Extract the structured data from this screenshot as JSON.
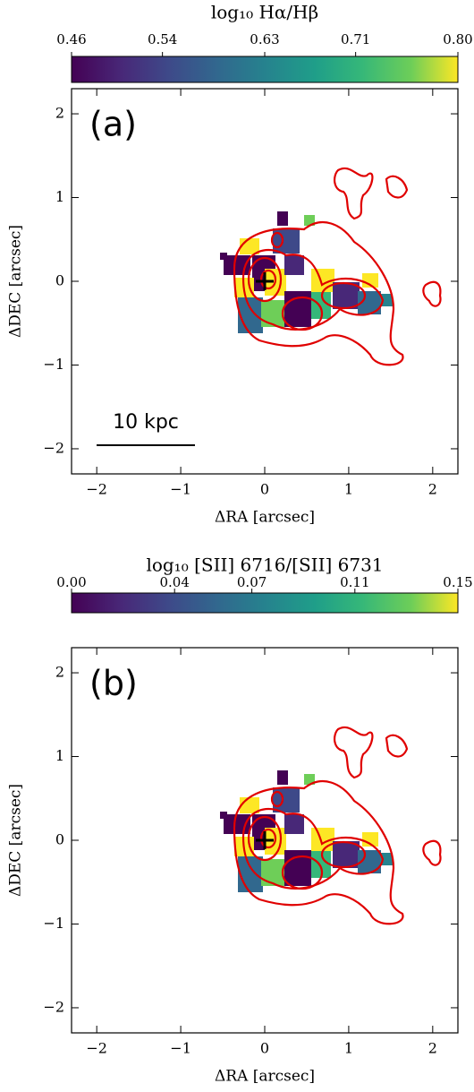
{
  "chart_data": [
    {
      "type": "image",
      "panel_label": "(a)",
      "colorbar_label": "log₁₀ Hα/Hβ",
      "colormap": "viridis",
      "colorbar_lim": [
        0.46,
        0.8
      ],
      "colorbar_ticks": [
        0.46,
        0.54,
        0.63,
        0.71,
        {
          "value": 0.8,
          "label": "0.80"
        }
      ],
      "xlabel": "ΔRA [arcsec]",
      "ylabel": "ΔDEC [arcsec]",
      "xlim": [
        -2.3,
        2.3
      ],
      "ylim": [
        -2.3,
        2.3
      ],
      "xticks": [
        {
          "value": -2,
          "label": "−2"
        },
        {
          "value": -1,
          "label": "−1"
        },
        0,
        1,
        2
      ],
      "yticks": [
        {
          "value": -2,
          "label": "−2"
        },
        {
          "value": -1,
          "label": "−1"
        },
        0,
        1,
        2
      ],
      "scale_bar": "10 kpc"
    },
    {
      "type": "image",
      "panel_label": "(b)",
      "colorbar_label": "log₁₀ [SII] 6716/[SII] 6731",
      "colormap": "viridis",
      "colorbar_lim": [
        0,
        0.15
      ],
      "colorbar_ticks": [
        {
          "value": 0,
          "label": "0.00"
        },
        0.04,
        0.07,
        0.11,
        0.15
      ],
      "xlabel": "ΔRA [arcsec]",
      "ylabel": "ΔDEC [arcsec]",
      "xlim": [
        -2.3,
        2.3
      ],
      "ylim": [
        -2.3,
        2.3
      ],
      "xticks": [
        {
          "value": -2,
          "label": "−2"
        },
        {
          "value": -1,
          "label": "−1"
        },
        0,
        1,
        2
      ],
      "yticks": [
        {
          "value": -2,
          "label": "−2"
        },
        {
          "value": -1,
          "label": "−1"
        },
        0,
        1,
        2
      ]
    }
  ]
}
